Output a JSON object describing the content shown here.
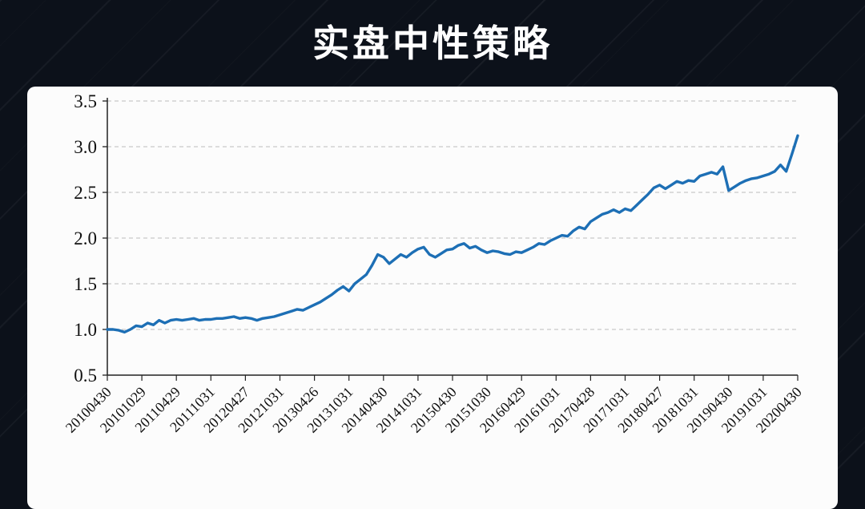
{
  "title": "实盘中性策略",
  "chart_data": {
    "type": "line",
    "title": "实盘中性策略",
    "series_name": "实盘中性策略",
    "xlabel": "",
    "ylabel": "",
    "ylim": [
      0.5,
      3.5
    ],
    "y_ticks": [
      0.5,
      1.0,
      1.5,
      2.0,
      2.5,
      3.0,
      3.5
    ],
    "grid": "horizontal-dashed",
    "legend_position": "none",
    "line_color": "#1d6fb5",
    "x_tick_every": 6,
    "x_tick_labels": [
      "20100430",
      "20101029",
      "20110429",
      "20111031",
      "20120427",
      "20121031",
      "20130426",
      "20131031",
      "20140430",
      "20141031",
      "20150430",
      "20151030",
      "20160429",
      "20161031",
      "20170428",
      "20171031",
      "20180427",
      "20181031",
      "20190430",
      "20191031",
      "20200430"
    ],
    "x_months": [
      "201004",
      "201005",
      "201006",
      "201007",
      "201008",
      "201009",
      "201010",
      "201011",
      "201012",
      "201101",
      "201102",
      "201103",
      "201104",
      "201105",
      "201106",
      "201107",
      "201108",
      "201109",
      "201110",
      "201111",
      "201112",
      "201201",
      "201202",
      "201203",
      "201204",
      "201205",
      "201206",
      "201207",
      "201208",
      "201209",
      "201210",
      "201211",
      "201212",
      "201301",
      "201302",
      "201303",
      "201304",
      "201305",
      "201306",
      "201307",
      "201308",
      "201309",
      "201310",
      "201311",
      "201312",
      "201401",
      "201402",
      "201403",
      "201404",
      "201405",
      "201406",
      "201407",
      "201408",
      "201409",
      "201410",
      "201411",
      "201412",
      "201501",
      "201502",
      "201503",
      "201504",
      "201505",
      "201506",
      "201507",
      "201508",
      "201509",
      "201510",
      "201511",
      "201512",
      "201601",
      "201602",
      "201603",
      "201604",
      "201605",
      "201606",
      "201607",
      "201608",
      "201609",
      "201610",
      "201611",
      "201612",
      "201701",
      "201702",
      "201703",
      "201704",
      "201705",
      "201706",
      "201707",
      "201708",
      "201709",
      "201710",
      "201711",
      "201712",
      "201801",
      "201802",
      "201803",
      "201804",
      "201805",
      "201806",
      "201807",
      "201808",
      "201809",
      "201810",
      "201811",
      "201812",
      "201901",
      "201902",
      "201903",
      "201904",
      "201905",
      "201906",
      "201907",
      "201908",
      "201909",
      "201910",
      "201911",
      "201912",
      "202001",
      "202002",
      "202003",
      "202004"
    ],
    "values": [
      1.0,
      1.0,
      0.99,
      0.97,
      1.0,
      1.04,
      1.03,
      1.07,
      1.05,
      1.1,
      1.07,
      1.1,
      1.11,
      1.1,
      1.11,
      1.12,
      1.1,
      1.11,
      1.11,
      1.12,
      1.12,
      1.13,
      1.14,
      1.12,
      1.13,
      1.12,
      1.1,
      1.12,
      1.13,
      1.14,
      1.16,
      1.18,
      1.2,
      1.22,
      1.21,
      1.24,
      1.27,
      1.3,
      1.34,
      1.38,
      1.43,
      1.47,
      1.42,
      1.5,
      1.55,
      1.6,
      1.7,
      1.82,
      1.79,
      1.72,
      1.77,
      1.82,
      1.79,
      1.84,
      1.88,
      1.9,
      1.82,
      1.79,
      1.83,
      1.87,
      1.88,
      1.92,
      1.94,
      1.89,
      1.91,
      1.87,
      1.84,
      1.86,
      1.85,
      1.83,
      1.82,
      1.85,
      1.84,
      1.87,
      1.9,
      1.94,
      1.93,
      1.97,
      2.0,
      2.03,
      2.02,
      2.08,
      2.12,
      2.1,
      2.18,
      2.22,
      2.26,
      2.28,
      2.31,
      2.28,
      2.32,
      2.3,
      2.36,
      2.42,
      2.48,
      2.55,
      2.58,
      2.54,
      2.58,
      2.62,
      2.6,
      2.63,
      2.62,
      2.68,
      2.7,
      2.72,
      2.7,
      2.78,
      2.52,
      2.56,
      2.6,
      2.63,
      2.65,
      2.66,
      2.68,
      2.7,
      2.73,
      2.8,
      2.73,
      2.92,
      3.12
    ]
  }
}
